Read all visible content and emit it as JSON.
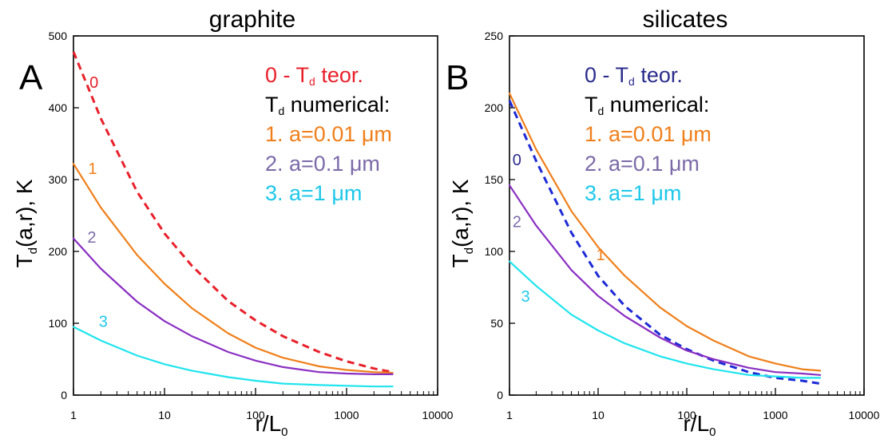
{
  "chart_data": [
    {
      "type": "line",
      "panel_label": "A",
      "title": "graphite",
      "xlabel": "r/L",
      "xlabel_sub": "0",
      "ylabel": "T",
      "ylabel_sub": "d",
      "ylabel_rest": "(a,r), K",
      "x_scale": "log",
      "xlim": [
        1,
        10000
      ],
      "ylim": [
        0,
        500
      ],
      "x_ticks": [
        "1",
        "10",
        "100",
        "1000",
        "10000"
      ],
      "y_ticks": [
        "0",
        "100",
        "200",
        "300",
        "400",
        "500"
      ],
      "legend": {
        "placement": "top-right",
        "lines": [
          {
            "text": "0 - T",
            "sub": "d",
            "rest": " teor.",
            "color": "#e8202a"
          },
          {
            "text": "T",
            "sub": "d",
            "rest": " numerical:",
            "color": "#000000"
          },
          {
            "text": "1. a=0.01 μm",
            "sub": "",
            "rest": "",
            "color": "#f07f1a"
          },
          {
            "text": "2. a=0.1 μm",
            "sub": "",
            "rest": "",
            "color": "#7b6aa8"
          },
          {
            "text": "3. a=1 μm",
            "sub": "",
            "rest": "",
            "color": "#1ec8ea"
          }
        ]
      },
      "series": [
        {
          "label": "0",
          "color": "#e8202a",
          "dashed": true,
          "x": [
            1,
            2,
            5,
            10,
            20,
            50,
            100,
            200,
            500,
            1000,
            2000,
            3200
          ],
          "y": [
            478,
            385,
            283,
            225,
            180,
            131,
            104,
            82,
            60,
            47,
            37,
            32
          ]
        },
        {
          "label": "1",
          "color": "#f07f1a",
          "dashed": false,
          "x": [
            1,
            2,
            5,
            10,
            20,
            50,
            100,
            200,
            500,
            1000,
            2000,
            3200
          ],
          "y": [
            322,
            261,
            195,
            155,
            121,
            86,
            66,
            52,
            40,
            35,
            32,
            31
          ]
        },
        {
          "label": "2",
          "color": "#8a2fc2",
          "dashed": false,
          "x": [
            1,
            2,
            5,
            10,
            20,
            50,
            100,
            200,
            500,
            1000,
            2000,
            3200
          ],
          "y": [
            218,
            176,
            130,
            103,
            82,
            60,
            48,
            39,
            32,
            30,
            29,
            29
          ]
        },
        {
          "label": "3",
          "color": "#1fe4ee",
          "dashed": false,
          "x": [
            1,
            2,
            5,
            10,
            20,
            50,
            100,
            200,
            500,
            1000,
            2000,
            3200
          ],
          "y": [
            95,
            76,
            55,
            43,
            34,
            25,
            20,
            16,
            14,
            13,
            12,
            12
          ]
        }
      ],
      "curve_labels": [
        {
          "text": "0",
          "color": "#e8202a",
          "x": 1.5,
          "y": 428
        },
        {
          "text": "1",
          "color": "#f07f1a",
          "x": 1.45,
          "y": 308
        },
        {
          "text": "2",
          "color": "#7b6aa8",
          "x": 1.42,
          "y": 212
        },
        {
          "text": "3",
          "color": "#1ec8ea",
          "x": 1.9,
          "y": 95
        }
      ]
    },
    {
      "type": "line",
      "panel_label": "B",
      "title": "silicates",
      "xlabel": "r/L",
      "xlabel_sub": "0",
      "ylabel": "T",
      "ylabel_sub": "d",
      "ylabel_rest": "(a,r), K",
      "x_scale": "log",
      "xlim": [
        1,
        10000
      ],
      "ylim": [
        0,
        250
      ],
      "x_ticks": [
        "1",
        "10",
        "100",
        "1000",
        "10000"
      ],
      "y_ticks": [
        "0",
        "50",
        "100",
        "150",
        "200",
        "250"
      ],
      "legend": {
        "placement": "top-right",
        "lines": [
          {
            "text": "0 - T",
            "sub": "d",
            "rest": " teor.",
            "color": "#2b2c8c"
          },
          {
            "text": "T",
            "sub": "d",
            "rest": " numerical:",
            "color": "#000000"
          },
          {
            "text": "1. a=0.01 μm",
            "sub": "",
            "rest": "",
            "color": "#f07f1a"
          },
          {
            "text": "2. a=0.1 μm",
            "sub": "",
            "rest": "",
            "color": "#7b6aa8"
          },
          {
            "text": "3. a=1 μm",
            "sub": "",
            "rest": "",
            "color": "#1ec8ea"
          }
        ]
      },
      "series": [
        {
          "label": "0",
          "color": "#1d2ad6",
          "dashed": true,
          "x": [
            1,
            2,
            5,
            10,
            20,
            50,
            100,
            200,
            500,
            1000,
            2000,
            3200
          ],
          "y": [
            205,
            163,
            113,
            83,
            62,
            42,
            32,
            24,
            16,
            12,
            10,
            8
          ]
        },
        {
          "label": "1",
          "color": "#f07f1a",
          "dashed": false,
          "x": [
            1,
            2,
            5,
            10,
            20,
            50,
            100,
            200,
            500,
            1000,
            2000,
            3200
          ],
          "y": [
            210,
            171,
            128,
            103,
            83,
            61,
            48,
            38,
            27,
            22,
            18,
            17
          ]
        },
        {
          "label": "2",
          "color": "#8a2fc2",
          "dashed": false,
          "x": [
            1,
            2,
            5,
            10,
            20,
            50,
            100,
            200,
            500,
            1000,
            2000,
            3200
          ],
          "y": [
            146,
            118,
            87,
            69,
            55,
            40,
            31,
            25,
            19,
            16,
            15,
            14
          ]
        },
        {
          "label": "3",
          "color": "#1fe4ee",
          "dashed": false,
          "x": [
            1,
            2,
            5,
            10,
            20,
            50,
            100,
            200,
            500,
            1000,
            2000,
            3200
          ],
          "y": [
            93,
            76,
            56,
            45,
            36,
            27,
            22,
            18,
            14,
            13,
            12,
            12
          ]
        }
      ],
      "curve_labels": [
        {
          "text": "0",
          "color": "#2b2c8c",
          "x": 1.08,
          "y": 160
        },
        {
          "text": "1",
          "color": "#f07f1a",
          "x": 9.5,
          "y": 94
        },
        {
          "text": "2",
          "color": "#7b6aa8",
          "x": 1.08,
          "y": 117
        },
        {
          "text": "3",
          "color": "#1ec8ea",
          "x": 1.35,
          "y": 65
        }
      ]
    }
  ]
}
